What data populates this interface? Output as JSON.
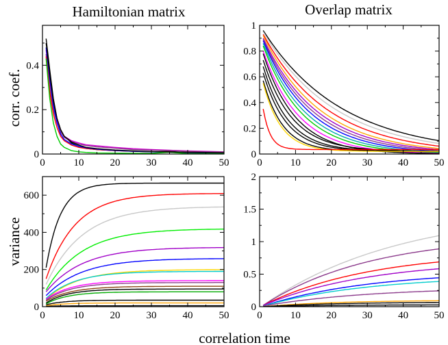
{
  "figure": {
    "xlabel": "correlation time",
    "ylabel_top": "corr. coef.",
    "ylabel_bottom": "variance"
  },
  "chart_data": [
    {
      "id": "tl",
      "type": "line",
      "title": "Hamiltonian matrix",
      "xlim": [
        0,
        50
      ],
      "ylim": [
        0,
        0.58
      ],
      "xticks": [
        0,
        10,
        20,
        30,
        40,
        50
      ],
      "yticks": [
        0,
        0.2,
        0.4
      ],
      "ytick_labels": [
        "0",
        "0.2",
        "0.4"
      ],
      "series": [
        {
          "name": "s1",
          "color": "#000000",
          "x": [
            1,
            2,
            3,
            4,
            5,
            6,
            8,
            10,
            12,
            15,
            20,
            25,
            30,
            35,
            40,
            45,
            50
          ],
          "values": [
            0.52,
            0.38,
            0.25,
            0.16,
            0.11,
            0.08,
            0.05,
            0.035,
            0.025,
            0.02,
            0.015,
            0.012,
            0.01,
            0.012,
            0.006,
            0.005,
            0.004
          ]
        },
        {
          "name": "s2",
          "color": "#d400d4",
          "x": [
            1,
            2,
            3,
            4,
            5,
            6,
            8,
            10,
            12,
            15,
            20,
            25,
            30,
            35,
            40,
            45,
            50
          ],
          "values": [
            0.47,
            0.33,
            0.22,
            0.15,
            0.1,
            0.08,
            0.06,
            0.05,
            0.042,
            0.037,
            0.03,
            0.024,
            0.02,
            0.017,
            0.014,
            0.012,
            0.01
          ]
        },
        {
          "name": "s3",
          "color": "#8b3a8b",
          "x": [
            1,
            2,
            3,
            4,
            5,
            6,
            8,
            10,
            12,
            15,
            20,
            25,
            30,
            35,
            40,
            45,
            50
          ],
          "values": [
            0.45,
            0.3,
            0.2,
            0.14,
            0.1,
            0.075,
            0.055,
            0.045,
            0.038,
            0.032,
            0.026,
            0.02,
            0.017,
            0.015,
            0.012,
            0.01,
            0.009
          ]
        },
        {
          "name": "s4",
          "color": "#ff0000",
          "x": [
            1,
            2,
            3,
            4,
            5,
            6,
            8,
            10,
            12,
            15,
            20,
            25,
            30,
            35,
            40,
            45,
            50
          ],
          "values": [
            0.44,
            0.28,
            0.18,
            0.12,
            0.08,
            0.06,
            0.04,
            0.03,
            0.025,
            0.02,
            0.015,
            0.012,
            0.01,
            0.009,
            0.008,
            0.007,
            0.006
          ]
        },
        {
          "name": "s5",
          "color": "#0000ff",
          "x": [
            1,
            2,
            3,
            4,
            5,
            6,
            8,
            10,
            12,
            15,
            20,
            25,
            30,
            35,
            40,
            45,
            50
          ],
          "values": [
            0.48,
            0.34,
            0.22,
            0.14,
            0.09,
            0.065,
            0.045,
            0.035,
            0.028,
            0.022,
            0.016,
            0.012,
            0.01,
            0.008,
            0.007,
            0.006,
            0.005
          ]
        },
        {
          "name": "s6",
          "color": "#00cc00",
          "x": [
            1,
            2,
            3,
            4,
            5,
            6,
            8,
            10,
            12,
            15,
            20,
            25,
            30,
            35,
            40,
            45,
            50
          ],
          "values": [
            0.43,
            0.25,
            0.14,
            0.08,
            0.045,
            0.03,
            0.015,
            0.01,
            0.007,
            0.005,
            0.004,
            0.003,
            0.003,
            0.008,
            0.002,
            0.002,
            0.002
          ]
        },
        {
          "name": "s7",
          "color": "#000000",
          "x": [
            1,
            2,
            3,
            4,
            5,
            6,
            8,
            10,
            12,
            15,
            20,
            25,
            30,
            35,
            40,
            45,
            50
          ],
          "values": [
            0.5,
            0.36,
            0.24,
            0.16,
            0.11,
            0.08,
            0.055,
            0.04,
            0.03,
            0.024,
            0.018,
            0.014,
            0.011,
            0.009,
            0.008,
            0.007,
            0.006
          ]
        }
      ]
    },
    {
      "id": "tr",
      "type": "line",
      "title": "Overlap matrix",
      "xlim": [
        0,
        50
      ],
      "ylim": [
        0,
        1
      ],
      "xticks": [
        0,
        10,
        20,
        30,
        40,
        50
      ],
      "yticks": [
        0,
        0.2,
        0.4,
        0.6,
        0.8,
        1
      ],
      "ytick_labels": [
        "0",
        "0.2",
        "0.4",
        "0.6",
        "0.8",
        "1"
      ],
      "series": [
        {
          "name": "d1",
          "color": "#000000",
          "y0": 0.96,
          "tau": 22,
          "floor": 0
        },
        {
          "name": "d2",
          "color": "#c8c8c8",
          "y0": 0.95,
          "tau": 20,
          "floor": 0
        },
        {
          "name": "d3",
          "color": "#ff0000",
          "y0": 0.93,
          "tau": 18,
          "floor": 0
        },
        {
          "name": "d4",
          "color": "#ffa500",
          "y0": 0.92,
          "tau": 16,
          "floor": 0
        },
        {
          "name": "d5",
          "color": "#a000c8",
          "y0": 0.9,
          "tau": 15,
          "floor": 0
        },
        {
          "name": "d6",
          "color": "#8b3a8b",
          "y0": 0.89,
          "tau": 14,
          "floor": 0
        },
        {
          "name": "d7",
          "color": "#0000ff",
          "y0": 0.88,
          "tau": 13,
          "floor": 0
        },
        {
          "name": "d8",
          "color": "#00aaaa",
          "y0": 0.86,
          "tau": 12,
          "floor": 0
        },
        {
          "name": "d9",
          "color": "#00cc00",
          "y0": 0.84,
          "tau": 11,
          "floor": 0
        },
        {
          "name": "d10",
          "color": "#ff00ff",
          "y0": 0.8,
          "tau": 10,
          "floor": 0
        },
        {
          "name": "d11",
          "color": "#000000",
          "y0": 0.78,
          "tau": 9,
          "floor": 0
        },
        {
          "name": "d12",
          "color": "#000000",
          "y0": 0.73,
          "tau": 8,
          "floor": 0.02
        },
        {
          "name": "d13",
          "color": "#000000",
          "y0": 0.68,
          "tau": 7,
          "floor": 0.02
        },
        {
          "name": "d14",
          "color": "#000000",
          "y0": 0.63,
          "tau": 6.5,
          "floor": 0.02
        },
        {
          "name": "d15",
          "color": "#000000",
          "y0": 0.57,
          "tau": 5.5,
          "floor": 0.02
        },
        {
          "name": "d16",
          "color": "#ffd700",
          "y0": 0.55,
          "tau": 5,
          "floor": 0.02
        },
        {
          "name": "d17",
          "color": "#ff0000",
          "y0": 0.35,
          "tau": 2,
          "floor": 0.035
        }
      ]
    },
    {
      "id": "bl",
      "type": "line",
      "title": "",
      "xlim": [
        0,
        50
      ],
      "ylim": [
        0,
        700
      ],
      "xticks": [
        0,
        10,
        20,
        30,
        40,
        50
      ],
      "yticks": [
        0,
        200,
        400,
        600
      ],
      "ytick_labels": [
        "0",
        "200",
        "400",
        "600"
      ],
      "series": [
        {
          "name": "v1",
          "color": "#000000",
          "y0": 210,
          "ymax": 665,
          "tau": 4
        },
        {
          "name": "v2",
          "color": "#c8c8c8",
          "y0": 120,
          "ymax": 540,
          "tau": 10
        },
        {
          "name": "v3",
          "color": "#ff0000",
          "y0": 150,
          "ymax": 610,
          "tau": 8
        },
        {
          "name": "v4",
          "color": "#00ee00",
          "y0": 90,
          "ymax": 420,
          "tau": 10
        },
        {
          "name": "v5",
          "color": "#a000c8",
          "y0": 80,
          "ymax": 320,
          "tau": 10
        },
        {
          "name": "v6",
          "color": "#0000ff",
          "y0": 60,
          "ymax": 260,
          "tau": 10
        },
        {
          "name": "v7",
          "color": "#ffd700",
          "y0": 40,
          "ymax": 200,
          "tau": 9
        },
        {
          "name": "v8",
          "color": "#00cccc",
          "y0": 45,
          "ymax": 190,
          "tau": 8
        },
        {
          "name": "v9",
          "color": "#ff00ff",
          "y0": 40,
          "ymax": 140,
          "tau": 7
        },
        {
          "name": "v10",
          "color": "#8b3a8b",
          "y0": 35,
          "ymax": 130,
          "tau": 7
        },
        {
          "name": "v11",
          "color": "#8b4513",
          "y0": 30,
          "ymax": 110,
          "tau": 7
        },
        {
          "name": "v12",
          "color": "#000000",
          "y0": 20,
          "ymax": 95,
          "tau": 6
        },
        {
          "name": "v13",
          "color": "#00aa00",
          "y0": 15,
          "ymax": 80,
          "tau": 6
        },
        {
          "name": "v14",
          "color": "#000000",
          "y0": 10,
          "ymax": 35,
          "tau": 5
        },
        {
          "name": "v15",
          "color": "#ffa500",
          "y0": 5,
          "ymax": 20,
          "tau": 5
        },
        {
          "name": "v16",
          "color": "#000000",
          "y0": 2,
          "ymax": 5,
          "tau": 5
        }
      ]
    },
    {
      "id": "br",
      "type": "line",
      "title": "",
      "xlim": [
        0,
        50
      ],
      "ylim": [
        0,
        2
      ],
      "xticks": [
        0,
        10,
        20,
        30,
        40,
        50
      ],
      "yticks": [
        0,
        0.5,
        1,
        1.5,
        2
      ],
      "ytick_labels": [
        "0",
        "0.5",
        "1",
        "1.5",
        "2"
      ],
      "series": [
        {
          "name": "w1",
          "color": "#c8c8c8",
          "y0": 0.02,
          "ymax": 1.5,
          "tau": 38
        },
        {
          "name": "w2",
          "color": "#8b3a8b",
          "y0": 0.02,
          "ymax": 1.1,
          "tau": 30
        },
        {
          "name": "w3",
          "color": "#ff0000",
          "y0": 0.02,
          "ymax": 0.85,
          "tau": 30
        },
        {
          "name": "w4",
          "color": "#a000c8",
          "y0": 0.02,
          "ymax": 0.72,
          "tau": 30
        },
        {
          "name": "w5",
          "color": "#0000ff",
          "y0": 0.01,
          "ymax": 0.55,
          "tau": 30
        },
        {
          "name": "w6",
          "color": "#00cccc",
          "y0": 0.01,
          "ymax": 0.48,
          "tau": 30
        },
        {
          "name": "w7",
          "color": "#8b3a8b",
          "y0": 0.01,
          "ymax": 0.3,
          "tau": 30
        },
        {
          "name": "w8",
          "color": "#ffa500",
          "y0": 0.0,
          "ymax": 0.1,
          "tau": 20
        },
        {
          "name": "w9",
          "color": "#000000",
          "y0": 0.0,
          "ymax": 0.07,
          "tau": 20
        },
        {
          "name": "w10",
          "color": "#000000",
          "y0": 0.0,
          "ymax": 0.03,
          "tau": 20
        }
      ]
    }
  ]
}
